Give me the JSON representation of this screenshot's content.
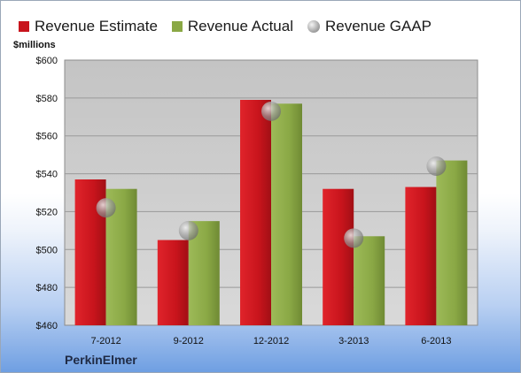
{
  "header": {
    "unit_label": "$millions"
  },
  "footer": {
    "company": "PerkinElmer"
  },
  "legend": {
    "items": [
      {
        "label": "Revenue Estimate",
        "color": "#c8141c",
        "icon": "square-swatch"
      },
      {
        "label": "Revenue Actual",
        "color": "#8aa845",
        "icon": "square-swatch"
      },
      {
        "label": "Revenue GAAP",
        "color": "#a0a0a0",
        "icon": "bubble-swatch"
      }
    ]
  },
  "chart_data": {
    "type": "bar",
    "categories": [
      "7-2012",
      "9-2012",
      "12-2012",
      "3-2013",
      "6-2013"
    ],
    "series": [
      {
        "name": "Revenue Estimate",
        "type": "bar",
        "color": "#c8141c",
        "values": [
          537,
          505,
          579,
          532,
          533
        ]
      },
      {
        "name": "Revenue Actual",
        "type": "bar",
        "color": "#8aa845",
        "values": [
          532,
          515,
          577,
          507,
          547
        ]
      },
      {
        "name": "Revenue GAAP",
        "type": "bubble",
        "color": "#a0a0a0",
        "values": [
          522,
          510,
          573,
          506,
          544
        ]
      }
    ],
    "ylim": [
      460,
      600
    ],
    "yticks": [
      460,
      480,
      500,
      520,
      540,
      560,
      580,
      600
    ],
    "ytick_labels": [
      "$460",
      "$480",
      "$500",
      "$520",
      "$540",
      "$560",
      "$580",
      "$600"
    ],
    "grid": true,
    "legend_position": "top"
  }
}
